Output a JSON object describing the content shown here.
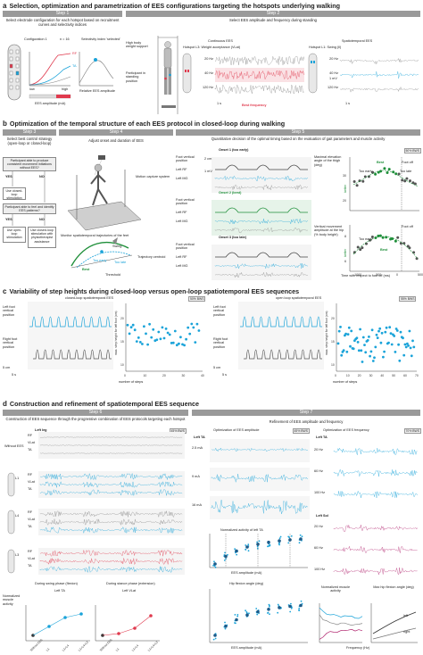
{
  "a": {
    "letter": "a",
    "title": "Selection, optimization and parametrization of EES configurations targeting the hotspots underlying walking",
    "step1": {
      "label": "Step 1",
      "text": "Select electrode configuration for each hotspot based on recruitment curves and selectivity indices"
    },
    "step2": {
      "label": "Step 2",
      "text": "Select EES amplitude and frequency during standing"
    },
    "config_label": "Configuration 1",
    "n_label": "n = 16",
    "selectivity_label": "Selectivity index 'selected'",
    "x_axis": "EES amplitude (mA)",
    "low": "low",
    "high": "high",
    "rel_amp": "Relative EES amplitude",
    "rf": "RF",
    "ta": "TA",
    "high_support": "High body weight support",
    "participant_standing": "Participant in standing position",
    "continuous": "Continuous EES",
    "spatiotemporal": "Spatiotemporal EES",
    "hotspot_l3": "Hotspot L3: Weight acceptance (VLat)",
    "hotspot_l1": "Hotspot L1: Swing (Il)",
    "freq_labels": [
      "20 Hz",
      "40 Hz",
      "120 Hz"
    ],
    "amp_scale": "1 mV",
    "time_scale": "1 s",
    "best_frequency": "Best frequency"
  },
  "b": {
    "letter": "b",
    "title": "Optimization of the temporal structure of each EES protocol in closed-loop during walking",
    "step3": {
      "label": "Step 3",
      "text": "Select best control strategy (open-loop or closed-loop)"
    },
    "step4": {
      "label": "Step 4",
      "text": "Adjust onset and duration of EES"
    },
    "step5": {
      "label": "Step 5",
      "text": "Quantitative decision of the optimal timing based on the evaluation of gait parameters and muscle activity"
    },
    "q1": "Participant able to produce consistent movement initiations without EES?",
    "yes": "YES",
    "no": "NO",
    "use_closed": "Use closed-loop stimulation",
    "q2": "Participant able to feel and identify EES patterns?",
    "use_open": "Use open-loop stimulation",
    "use_closed_physio": "Use closed-loop stimulation with physiotherapist assistance",
    "motion_capture": "Motion capture system",
    "monitor": "Monitor spatiotemporal trajectories of the feet",
    "swing": "Swing",
    "best": "Best",
    "too_early_short": "Too early",
    "too_late_short": "Too late",
    "threshold": "Threshold",
    "trajectory_centroid": "Trajectory centroid",
    "onsets": [
      {
        "title": "Onset 1",
        "quality": "(too early)"
      },
      {
        "title": "Onset 2",
        "quality": "(best)"
      },
      {
        "title": "Onset 3",
        "quality": "(too late)"
      }
    ],
    "trace_labels": [
      "Foot vertical position",
      "Left RF",
      "Left MG"
    ],
    "scale_2cm": "2 cm",
    "scale_1mv": "1 mV",
    "bws": "50% BWS",
    "max_elev": "Maximal elevation angle of the thigh (deg)",
    "vert_amp": "Vertical movement amplitude at the hip (% body height)",
    "foot_off": "Foot off",
    "time_wrt": "Time with respect to foot off (ms)",
    "better": "better",
    "scatter_x_ticks": [
      "-1000",
      "-500",
      "0",
      "500"
    ],
    "scatter_top_y": [
      "20",
      "30"
    ],
    "scatter_bot_y": [
      "6",
      "8"
    ]
  },
  "c": {
    "letter": "c",
    "title": "Variability of step heights during closed-loop versus open-loop spatiotemporal EES sequences",
    "closed": "closed-loop spatiotemporal EES",
    "open": "open loop spatiotemporal EES",
    "left_foot": "Left foot vertical position",
    "right_foot": "Right foot vertical position",
    "scale_5cm": "5 cm",
    "scale_5s": "5 s",
    "bws": "50% BWS",
    "bws2": "55% BWS",
    "y_label": "max. step height for left foot (cm)",
    "x_label": "number of steps",
    "y_ticks": [
      "10",
      "15",
      "20"
    ],
    "x_ticks_closed": [
      "0",
      "10",
      "20",
      "30",
      "40"
    ],
    "x_ticks_open": [
      "0",
      "10",
      "20",
      "30",
      "40",
      "50",
      "60",
      "70"
    ]
  },
  "d": {
    "letter": "d",
    "title": "Construction and refinement of spatiotemporal EES sequence",
    "step6": {
      "label": "Step 6",
      "text": "Construction of EES sequence through the progressive combination of EES protocols targeting each hotspot"
    },
    "step7": {
      "label": "Step 7",
      "text": "Refinement of EES amplitude and frequency"
    },
    "left_leg": "Left leg",
    "bws45": "45% BWS",
    "bws70": "70% BWS",
    "without_ees": "Without EES",
    "emg_labels": [
      "RF",
      "VLat",
      "TA"
    ],
    "hotspots": [
      "L1",
      "L4",
      "L3"
    ],
    "opt_amp": "Optimization of EES amplitude",
    "opt_freq": "Optimization of EES frequency",
    "left_ta": "Left TA",
    "left_sol": "Left Sol",
    "amp_vals": [
      "2.5 mA",
      "9 mA",
      "16 mA"
    ],
    "freq_vals": [
      "20 Hz",
      "60 Hz",
      "100 Hz"
    ],
    "norm_activity": "Normalized activity of left TA",
    "ees_amp_axis": "EES amplitude (mA)",
    "hip_flexion": "Hip flexion angle (deg)",
    "swing_phase": "During swing phase (flexion)",
    "stance_phase": "During stance phase (extension)",
    "norm_muscle": "Normalized muscle activity",
    "left_ta_short": "Left TA",
    "left_vlat_short": "Left VLat",
    "max_hip": "Max hip flexion angle (deg)",
    "freq_axis": "Frequency (Hz)",
    "left": "left",
    "right": "right",
    "x_combo": [
      "Without EES",
      "L1",
      "L1+L4",
      "L1+L4+L3"
    ],
    "mV_scale": "0.5 mV"
  },
  "colors": {
    "green": "#1f8f3a",
    "cyan": "#1aa3d9",
    "red": "#e03a4e",
    "magenta": "#b0246e",
    "gray": "#9a9a9a"
  }
}
